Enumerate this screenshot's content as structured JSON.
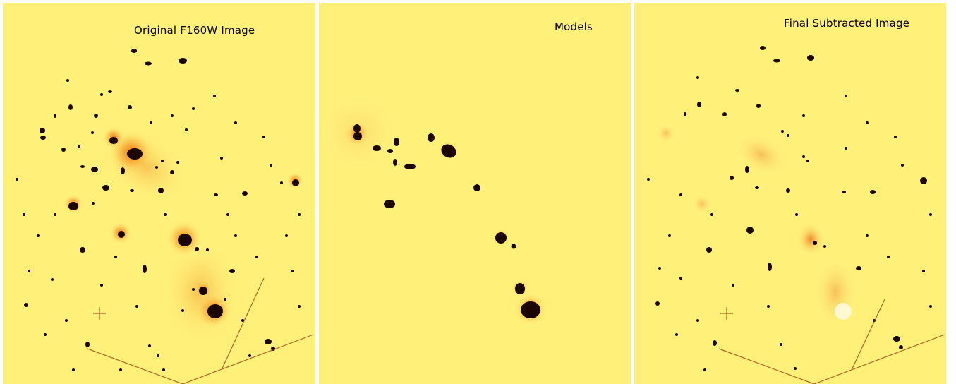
{
  "panels": [
    {
      "title": "Original F160W Image"
    },
    {
      "title": "Models"
    },
    {
      "title": "Final Subtracted Image"
    }
  ],
  "colors": {
    "background": "#fff07a",
    "halo": "#f5a028",
    "core": "#1a0500",
    "mid": "#b03a00"
  }
}
